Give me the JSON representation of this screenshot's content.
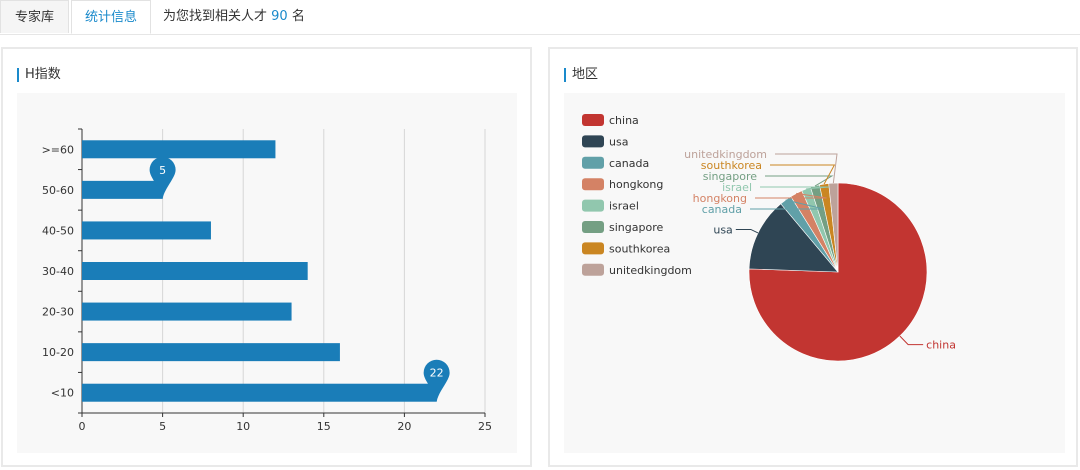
{
  "tabs": [
    {
      "label": "专家库",
      "active": false
    },
    {
      "label": "统计信息",
      "active": true
    }
  ],
  "summary": {
    "prefix": "为您找到相关人才",
    "count": "90",
    "suffix": "名"
  },
  "h_index_panel": {
    "title": "H指数"
  },
  "region_panel": {
    "title": "地区"
  },
  "colors": {
    "accent": "#1a8acb",
    "bar": "#1a7db8"
  },
  "chart_data": [
    {
      "type": "bar",
      "orientation": "horizontal",
      "title": "H指数",
      "categories": [
        ">=60",
        "50-60",
        "40-50",
        "30-40",
        "20-30",
        "10-20",
        "<10"
      ],
      "values": [
        12,
        5,
        8,
        14,
        13,
        16,
        22
      ],
      "xlim": [
        0,
        25
      ],
      "xticks": [
        0,
        5,
        10,
        15,
        20,
        25
      ],
      "markers": [
        {
          "category": "50-60",
          "value": 5,
          "label": "5"
        },
        {
          "category": "<10",
          "value": 22,
          "label": "22"
        }
      ]
    },
    {
      "type": "pie",
      "title": "地区",
      "legend_position": "left",
      "slices": [
        {
          "name": "china",
          "value": 68,
          "color": "#c23531"
        },
        {
          "name": "usa",
          "value": 12,
          "color": "#2f4554"
        },
        {
          "name": "canada",
          "value": 2,
          "color": "#61a0a8"
        },
        {
          "name": "hongkong",
          "value": 2,
          "color": "#d48265"
        },
        {
          "name": "israel",
          "value": 1.5,
          "color": "#91c7ae"
        },
        {
          "name": "singapore",
          "value": 1.5,
          "color": "#749f83"
        },
        {
          "name": "southkorea",
          "value": 1.5,
          "color": "#ca8622"
        },
        {
          "name": "unitedkingdom",
          "value": 1.5,
          "color": "#bda29a"
        }
      ]
    }
  ]
}
